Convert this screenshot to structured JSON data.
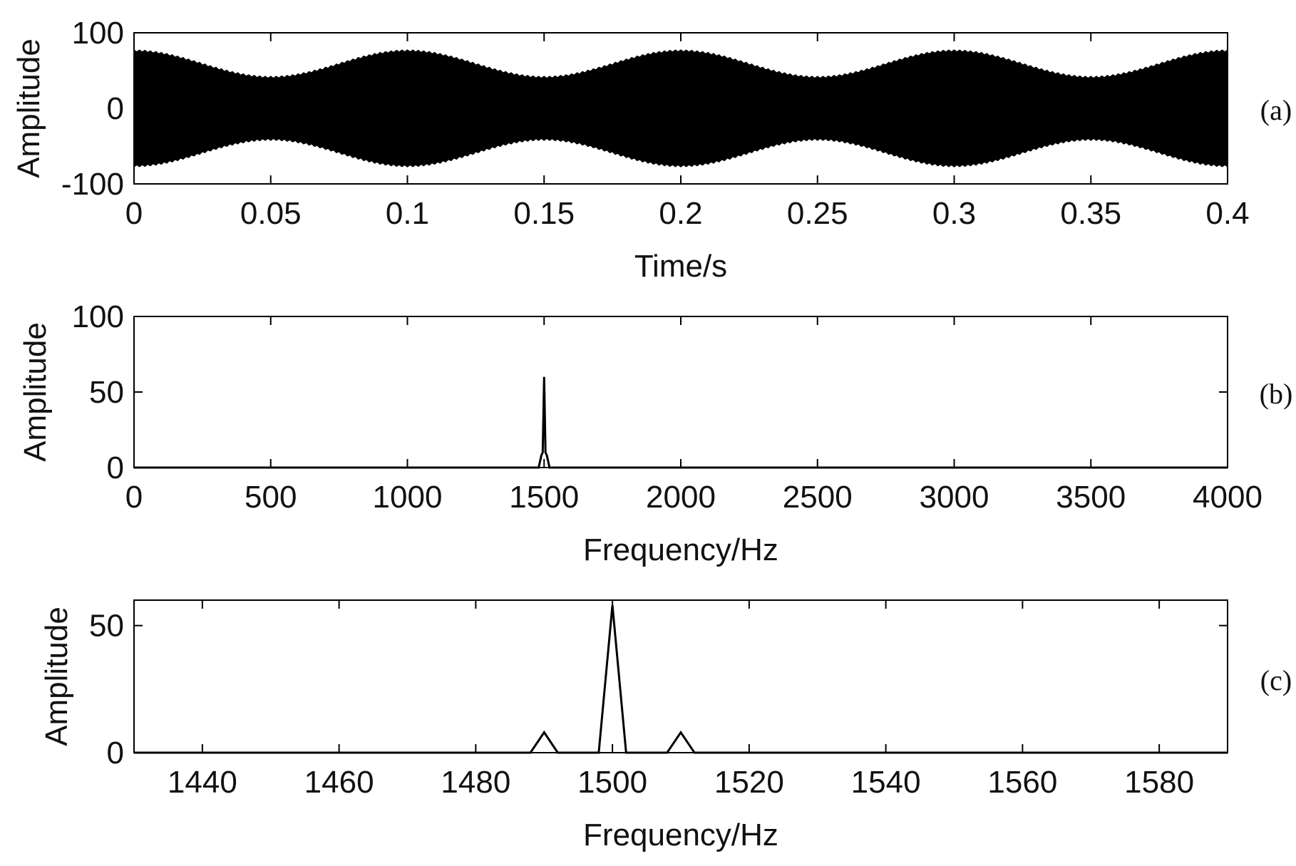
{
  "chart_data": [
    {
      "panel": "(a)",
      "type": "line",
      "xlabel": "Time/s",
      "ylabel": "Amplitude",
      "xlim": [
        0,
        0.4
      ],
      "ylim": [
        -100,
        100
      ],
      "xticks": [
        "0",
        "0.05",
        "0.1",
        "0.15",
        "0.2",
        "0.25",
        "0.3",
        "0.35",
        "0.4"
      ],
      "yticks": [
        "-100",
        "0",
        "100"
      ],
      "envelope_x": [
        0,
        0.05,
        0.1,
        0.15,
        0.2,
        0.25,
        0.3,
        0.35,
        0.4
      ],
      "envelope_upper": [
        75,
        40,
        75,
        40,
        75,
        40,
        75,
        40,
        75
      ],
      "envelope_lower": [
        -75,
        -40,
        -75,
        -40,
        -75,
        -40,
        -75,
        -40,
        -75
      ],
      "signal_description": "carrier 1500 Hz, amplitude-modulated"
    },
    {
      "panel": "(b)",
      "type": "line",
      "xlabel": "Frequency/Hz",
      "ylabel": "Amplitude",
      "xlim": [
        0,
        4000
      ],
      "ylim": [
        0,
        100
      ],
      "xticks": [
        "0",
        "500",
        "1000",
        "1500",
        "2000",
        "2500",
        "3000",
        "3500",
        "4000"
      ],
      "yticks": [
        "0",
        "50",
        "100"
      ],
      "x": [
        0,
        1480,
        1490,
        1495,
        1500,
        1505,
        1510,
        1520,
        4000
      ],
      "y": [
        0,
        0,
        8,
        10,
        60,
        10,
        8,
        0,
        0
      ]
    },
    {
      "panel": "(c)",
      "type": "line",
      "xlabel": "Frequency/Hz",
      "ylabel": "Amplitude",
      "xlim": [
        1430,
        1590
      ],
      "ylim": [
        0,
        60
      ],
      "xticks": [
        "1440",
        "1460",
        "1480",
        "1500",
        "1520",
        "1540",
        "1560",
        "1580"
      ],
      "yticks": [
        "0",
        "50"
      ],
      "x": [
        1430,
        1488,
        1490,
        1492,
        1498,
        1500,
        1502,
        1508,
        1510,
        1512,
        1590
      ],
      "y": [
        0,
        0,
        8,
        0,
        0,
        58,
        0,
        0,
        8,
        0,
        0
      ]
    }
  ]
}
